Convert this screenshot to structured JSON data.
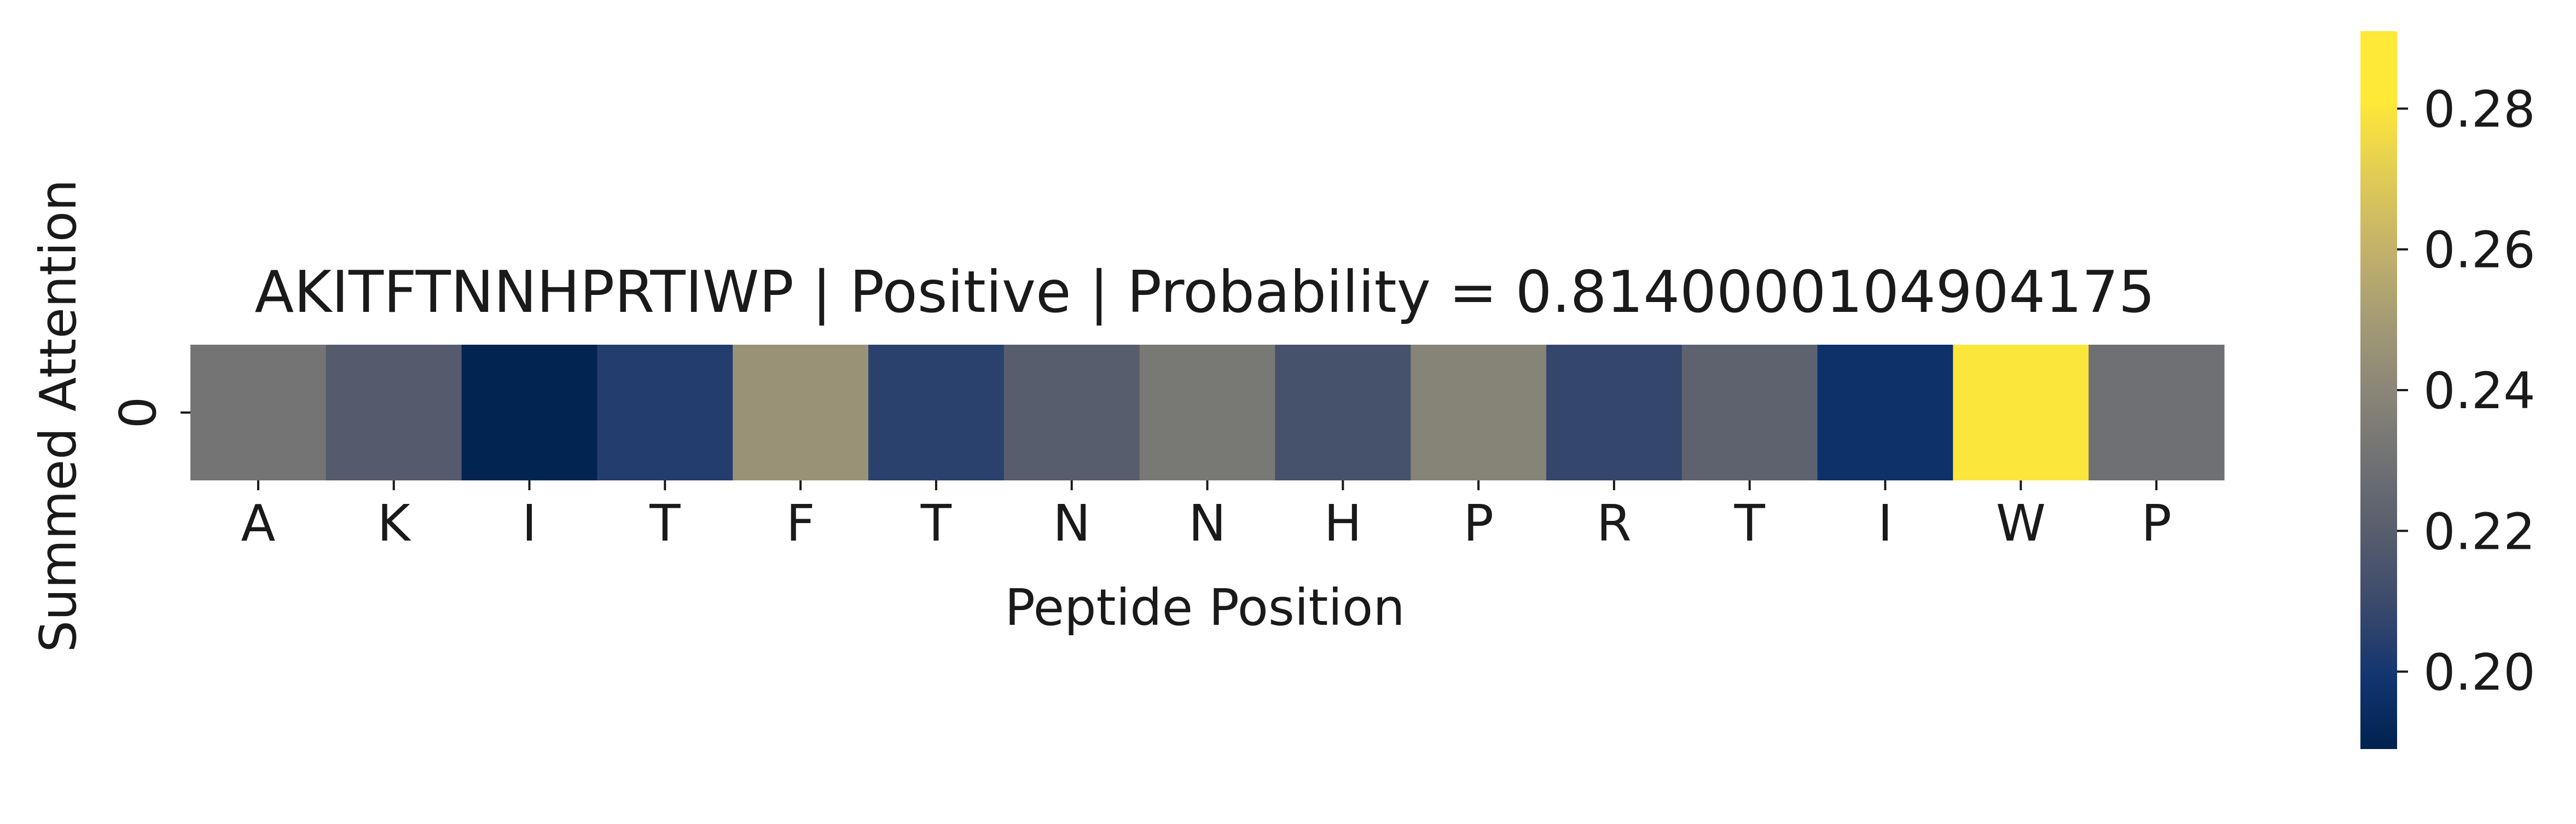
{
  "chart_data": {
    "type": "heatmap",
    "title": "AKITFTNNHPRTIWP | Positive | Probability = 0.8140000104904175",
    "xlabel": "Peptide Position",
    "ylabel": "Summed Attention",
    "categories": [
      "A",
      "K",
      "I",
      "T",
      "F",
      "T",
      "N",
      "N",
      "H",
      "P",
      "R",
      "T",
      "I",
      "W",
      "P"
    ],
    "rows": [
      "0"
    ],
    "values": [
      [
        0.236,
        0.222,
        0.19,
        0.205,
        0.252,
        0.207,
        0.223,
        0.238,
        0.216,
        0.244,
        0.21,
        0.226,
        0.198,
        0.29,
        0.234
      ]
    ],
    "colorbar": {
      "min": 0.189,
      "max": 0.291,
      "ticks": [
        0.2,
        0.22,
        0.24,
        0.26,
        0.28
      ],
      "tick_labels": [
        "0.20",
        "0.22",
        "0.24",
        "0.26",
        "0.28"
      ],
      "colormap": "cividis"
    }
  }
}
